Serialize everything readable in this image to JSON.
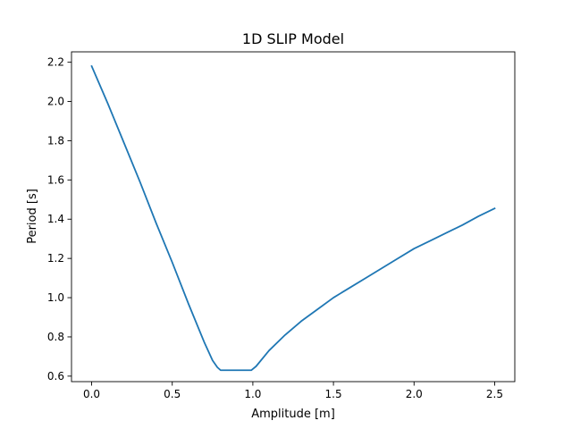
{
  "chart_data": {
    "type": "line",
    "title": "1D SLIP Model",
    "xlabel": "Amplitude [m]",
    "ylabel": "Period [s]",
    "xlim": [
      -0.125,
      2.625
    ],
    "ylim": [
      0.572,
      2.253
    ],
    "xticks": [
      {
        "value": 0.0,
        "label": "0.0"
      },
      {
        "value": 0.5,
        "label": "0.5"
      },
      {
        "value": 1.0,
        "label": "1.0"
      },
      {
        "value": 1.5,
        "label": "1.5"
      },
      {
        "value": 2.0,
        "label": "2.0"
      },
      {
        "value": 2.5,
        "label": "2.5"
      }
    ],
    "yticks": [
      {
        "value": 0.6,
        "label": "0.6"
      },
      {
        "value": 0.8,
        "label": "0.8"
      },
      {
        "value": 1.0,
        "label": "1.0"
      },
      {
        "value": 1.2,
        "label": "1.2"
      },
      {
        "value": 1.4,
        "label": "1.4"
      },
      {
        "value": 1.6,
        "label": "1.6"
      },
      {
        "value": 1.8,
        "label": "1.8"
      },
      {
        "value": 2.0,
        "label": "2.0"
      },
      {
        "value": 2.2,
        "label": "2.2"
      }
    ],
    "grid": false,
    "series": [
      {
        "color": "#1f77b4",
        "points": [
          [
            0.0,
            2.18
          ],
          [
            0.1,
            1.99
          ],
          [
            0.2,
            1.79
          ],
          [
            0.3,
            1.59
          ],
          [
            0.4,
            1.38
          ],
          [
            0.5,
            1.18
          ],
          [
            0.6,
            0.97
          ],
          [
            0.7,
            0.77
          ],
          [
            0.75,
            0.68
          ],
          [
            0.78,
            0.645
          ],
          [
            0.8,
            0.63
          ],
          [
            0.9,
            0.63
          ],
          [
            0.99,
            0.63
          ],
          [
            1.02,
            0.65
          ],
          [
            1.1,
            0.73
          ],
          [
            1.2,
            0.81
          ],
          [
            1.3,
            0.88
          ],
          [
            1.4,
            0.94
          ],
          [
            1.5,
            1.0
          ],
          [
            1.6,
            1.05
          ],
          [
            1.7,
            1.1
          ],
          [
            1.8,
            1.15
          ],
          [
            1.9,
            1.2
          ],
          [
            2.0,
            1.25
          ],
          [
            2.1,
            1.29
          ],
          [
            2.2,
            1.33
          ],
          [
            2.3,
            1.37
          ],
          [
            2.4,
            1.415
          ],
          [
            2.5,
            1.455
          ]
        ]
      }
    ]
  }
}
